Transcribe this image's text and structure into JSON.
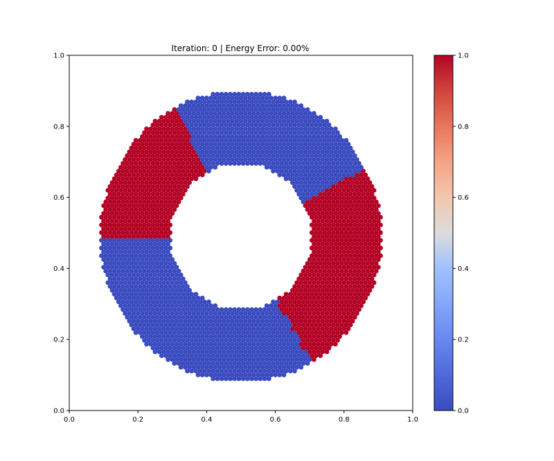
{
  "chart_data": {
    "type": "scatter",
    "title": "Iteration: 0 | Energy Error: 0.00%",
    "xlim": [
      0,
      1
    ],
    "ylim": [
      0,
      1
    ],
    "xticks": [
      "0.0",
      "0.2",
      "0.4",
      "0.6",
      "0.8",
      "1.0"
    ],
    "yticks": [
      "0.0",
      "0.2",
      "0.4",
      "0.6",
      "0.8",
      "1.0"
    ],
    "grid": false,
    "domain": {
      "shape": "annulus",
      "center": [
        0.5,
        0.49
      ],
      "inner_radius": 0.205,
      "outer_radius": 0.41,
      "lattice_spacing": 0.0125
    },
    "hot_regions": [
      {
        "label": "upper-left sector",
        "value": 1.0,
        "angle_deg": [
          118,
          180
        ],
        "bounds_note": "boundary from (0.37,0.88) down to (0.4,0.7) and across to (0.2,0.62)"
      },
      {
        "label": "right sector",
        "value": 1.0,
        "angle_deg": [
          -60,
          28
        ],
        "bounds_note": "boundary from (0.68,0.61) down to (0.55,0.3) and (0.65,0.22)"
      }
    ],
    "background_value": 0.0,
    "colorbar": {
      "cmap": "coolwarm",
      "range": [
        0.0,
        1.0
      ],
      "ticks": [
        "0.0",
        "0.2",
        "0.4",
        "0.6",
        "0.8",
        "1.0"
      ],
      "low_color": "#3b4cc0",
      "mid_color": "#dddddd",
      "high_color": "#b40426"
    }
  },
  "colors": {
    "blue_node": "#3b4cc0",
    "blue_link": "#4b62d6",
    "red_node": "#b40426",
    "red_link": "#c81d34",
    "axis": "#000000"
  }
}
